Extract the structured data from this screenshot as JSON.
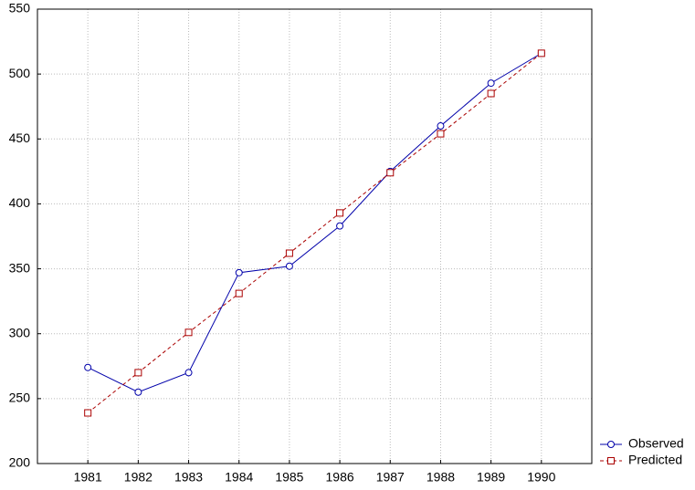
{
  "chart_data": {
    "type": "line",
    "x": [
      1981,
      1982,
      1983,
      1984,
      1985,
      1986,
      1987,
      1988,
      1989,
      1990
    ],
    "series": [
      {
        "name": "Observed",
        "color": "#0000aa",
        "marker": "circle",
        "dash": "solid",
        "values": [
          274,
          255,
          270,
          347,
          352,
          383,
          425,
          460,
          493,
          516
        ]
      },
      {
        "name": "Predicted",
        "color": "#aa0000",
        "marker": "square",
        "dash": "dashed",
        "values": [
          239,
          270,
          301,
          331,
          362,
          393,
          424,
          454,
          485,
          516
        ]
      }
    ],
    "xlim": [
      1980,
      1991
    ],
    "xticks": [
      1981,
      1982,
      1983,
      1984,
      1985,
      1986,
      1987,
      1988,
      1989,
      1990
    ],
    "ylim": [
      200,
      550
    ],
    "yticks": [
      200,
      250,
      300,
      350,
      400,
      450,
      500,
      550
    ],
    "grid": true,
    "legend": "bottom-right-outside"
  }
}
